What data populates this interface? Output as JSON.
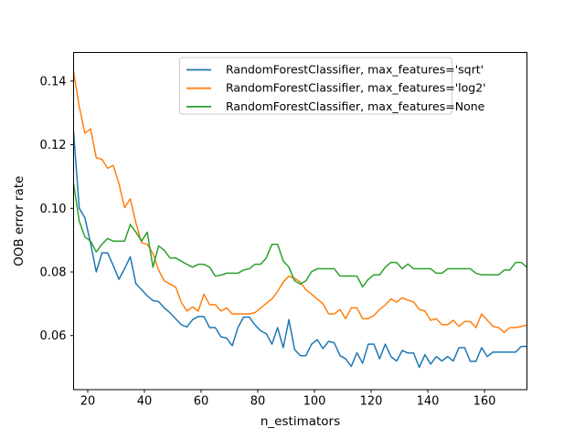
{
  "figure": {
    "background_color": "#ffffff",
    "spine_color": "#000000",
    "legend_edge_color": "#cccccc"
  },
  "chart_data": {
    "type": "line",
    "title": "",
    "xlabel": "n_estimators",
    "ylabel": "OOB error rate",
    "xlim": [
      15,
      175
    ],
    "ylim": [
      0.043,
      0.149
    ],
    "xticks": [
      20,
      40,
      60,
      80,
      100,
      120,
      140,
      160
    ],
    "xtick_labels": [
      "20",
      "40",
      "60",
      "80",
      "100",
      "120",
      "140",
      "160"
    ],
    "yticks": [
      0.06,
      0.08,
      0.1,
      0.12,
      0.14
    ],
    "ytick_labels": [
      "0.06",
      "0.08",
      "0.10",
      "0.12",
      "0.14"
    ],
    "grid": false,
    "legend_position": "upper center",
    "x": [
      15,
      17,
      19,
      21,
      23,
      25,
      27,
      29,
      31,
      33,
      35,
      37,
      39,
      41,
      43,
      45,
      47,
      49,
      51,
      53,
      55,
      57,
      59,
      61,
      63,
      65,
      67,
      69,
      71,
      73,
      75,
      77,
      79,
      81,
      83,
      85,
      87,
      89,
      91,
      93,
      95,
      97,
      99,
      101,
      103,
      105,
      107,
      109,
      111,
      113,
      115,
      117,
      119,
      121,
      123,
      125,
      127,
      129,
      131,
      133,
      135,
      137,
      139,
      141,
      143,
      145,
      147,
      149,
      151,
      153,
      155,
      157,
      159,
      161,
      163,
      165,
      167,
      169,
      171,
      173,
      175
    ],
    "series": [
      {
        "name": "RandomForestClassifier, max_features='sqrt'",
        "color": "#1f77b4",
        "values": [
          0.124,
          0.1,
          0.097,
          0.089,
          0.08,
          0.086,
          0.086,
          0.082,
          0.0777,
          0.081,
          0.0848,
          0.0763,
          0.0744,
          0.0725,
          0.071,
          0.0707,
          0.0687,
          0.0672,
          0.0653,
          0.0634,
          0.0627,
          0.065,
          0.066,
          0.066,
          0.0625,
          0.0625,
          0.0596,
          0.0592,
          0.0568,
          0.0625,
          0.0658,
          0.0658,
          0.0634,
          0.0615,
          0.0606,
          0.0573,
          0.0625,
          0.0562,
          0.065,
          0.0556,
          0.0537,
          0.0537,
          0.0573,
          0.0587,
          0.0559,
          0.0582,
          0.0577,
          0.0537,
          0.0527,
          0.0503,
          0.0546,
          0.0513,
          0.0573,
          0.0573,
          0.0527,
          0.0573,
          0.0534,
          0.052,
          0.0553,
          0.0545,
          0.0545,
          0.05,
          0.054,
          0.051,
          0.0534,
          0.052,
          0.0534,
          0.052,
          0.0562,
          0.0562,
          0.0519,
          0.0519,
          0.0562,
          0.0534,
          0.0548,
          0.0548,
          0.0548,
          0.0548,
          0.0548,
          0.0566,
          0.0566
        ]
      },
      {
        "name": "RandomForestClassifier, max_features='log2'",
        "color": "#ff7f0e",
        "values": [
          0.143,
          0.132,
          0.1236,
          0.125,
          0.1159,
          0.1154,
          0.1126,
          0.1135,
          0.1078,
          0.1002,
          0.103,
          0.0954,
          0.0892,
          0.0887,
          0.0858,
          0.0806,
          0.0772,
          0.0762,
          0.0753,
          0.0705,
          0.0677,
          0.069,
          0.0677,
          0.073,
          0.0697,
          0.0697,
          0.0677,
          0.0687,
          0.0668,
          0.0668,
          0.0668,
          0.0668,
          0.0672,
          0.0687,
          0.0701,
          0.0715,
          0.0739,
          0.0768,
          0.0787,
          0.078,
          0.0768,
          0.0744,
          0.073,
          0.0715,
          0.07,
          0.0668,
          0.0668,
          0.0682,
          0.0653,
          0.0687,
          0.0687,
          0.0653,
          0.0653,
          0.0663,
          0.0682,
          0.0696,
          0.0715,
          0.0705,
          0.0719,
          0.0711,
          0.0706,
          0.0682,
          0.0677,
          0.0648,
          0.0653,
          0.0634,
          0.0634,
          0.0648,
          0.0629,
          0.0644,
          0.0644,
          0.0625,
          0.0668,
          0.0648,
          0.0629,
          0.0625,
          0.061,
          0.0625,
          0.0625,
          0.0629,
          0.0633
        ]
      },
      {
        "name": "RandomForestClassifier, max_features=None",
        "color": "#2ca02c",
        "values": [
          0.1078,
          0.096,
          0.091,
          0.0897,
          0.0863,
          0.0887,
          0.0905,
          0.0897,
          0.0897,
          0.0897,
          0.0949,
          0.0925,
          0.0897,
          0.0925,
          0.0815,
          0.0882,
          0.0868,
          0.0844,
          0.0844,
          0.0834,
          0.0824,
          0.0815,
          0.0824,
          0.0824,
          0.0815,
          0.0787,
          0.079,
          0.0796,
          0.0796,
          0.0796,
          0.0806,
          0.081,
          0.0824,
          0.0824,
          0.0844,
          0.0887,
          0.0887,
          0.0834,
          0.0815,
          0.0772,
          0.0762,
          0.0772,
          0.0801,
          0.081,
          0.081,
          0.081,
          0.081,
          0.0787,
          0.0787,
          0.0787,
          0.0787,
          0.0753,
          0.0777,
          0.0791,
          0.0791,
          0.0815,
          0.083,
          0.083,
          0.081,
          0.0825,
          0.081,
          0.081,
          0.081,
          0.081,
          0.0796,
          0.0796,
          0.081,
          0.081,
          0.081,
          0.081,
          0.081,
          0.0796,
          0.0791,
          0.0791,
          0.0791,
          0.0791,
          0.0806,
          0.0806,
          0.083,
          0.083,
          0.0815
        ]
      }
    ]
  }
}
